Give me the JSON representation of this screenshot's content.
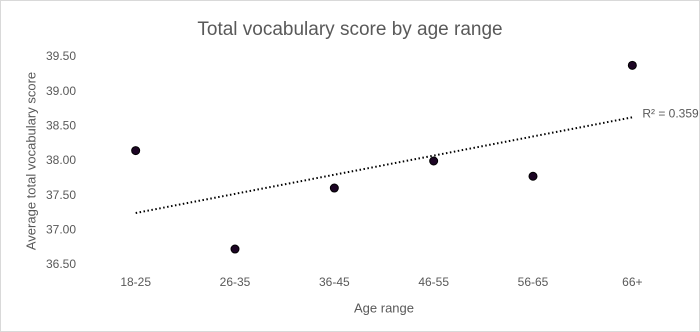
{
  "chart_data": {
    "type": "scatter",
    "title": "Total vocabulary score by age range",
    "x_label": "Age range",
    "y_label": "Average total vocabulary score",
    "categories": [
      "18-25",
      "26-35",
      "36-45",
      "46-55",
      "56-65",
      "66+"
    ],
    "values": [
      38.15,
      36.73,
      37.61,
      38.0,
      37.78,
      39.38
    ],
    "color": "#1c0524",
    "ylim": [
      36.5,
      39.5
    ],
    "yticks": [
      {
        "value": 36.5,
        "label": "36.50"
      },
      {
        "value": 37,
        "label": "37.00"
      },
      {
        "value": 37.5,
        "label": "37.50"
      },
      {
        "value": 38,
        "label": "38.00"
      },
      {
        "value": 38.5,
        "label": "38.50"
      },
      {
        "value": 39,
        "label": "39.00"
      },
      {
        "value": 39.5,
        "label": "39.50"
      }
    ],
    "trendline": {
      "values": [
        37.25,
        38.63
      ],
      "label": "R² = 0.359"
    }
  }
}
